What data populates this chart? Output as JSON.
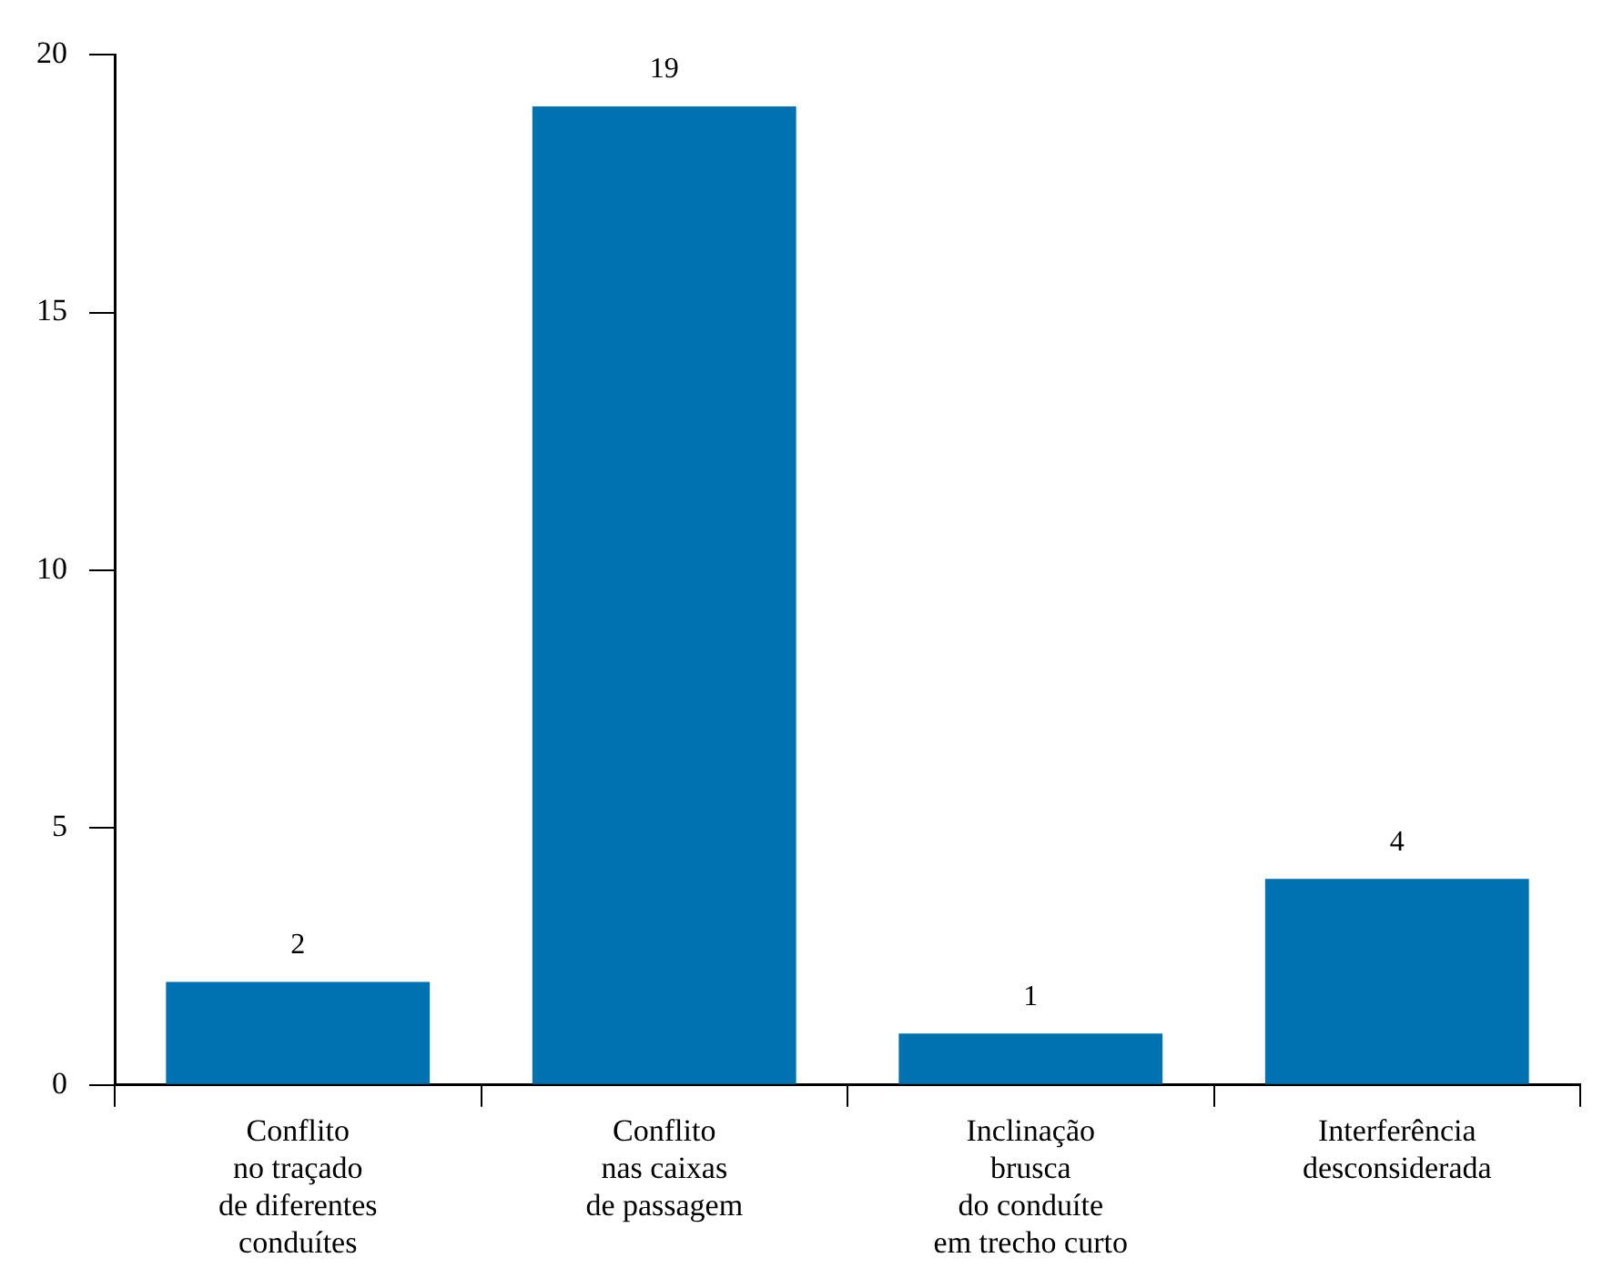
{
  "chart_data": {
    "type": "bar",
    "categories": [
      "Conflito\nno traçado\nde diferentes\nconduítes",
      "Conflito\nnas caixas\nde passagem",
      "Inclinação\nbrusca\ndo conduíte\nem trecho curto",
      "Interferência\ndesconsiderada"
    ],
    "values": [
      2,
      19,
      1,
      4
    ],
    "color": "#0072b2",
    "ylim": [
      0,
      20
    ],
    "yticks": [
      0,
      5,
      10,
      15,
      20
    ],
    "grid": false,
    "data_labels": true
  }
}
